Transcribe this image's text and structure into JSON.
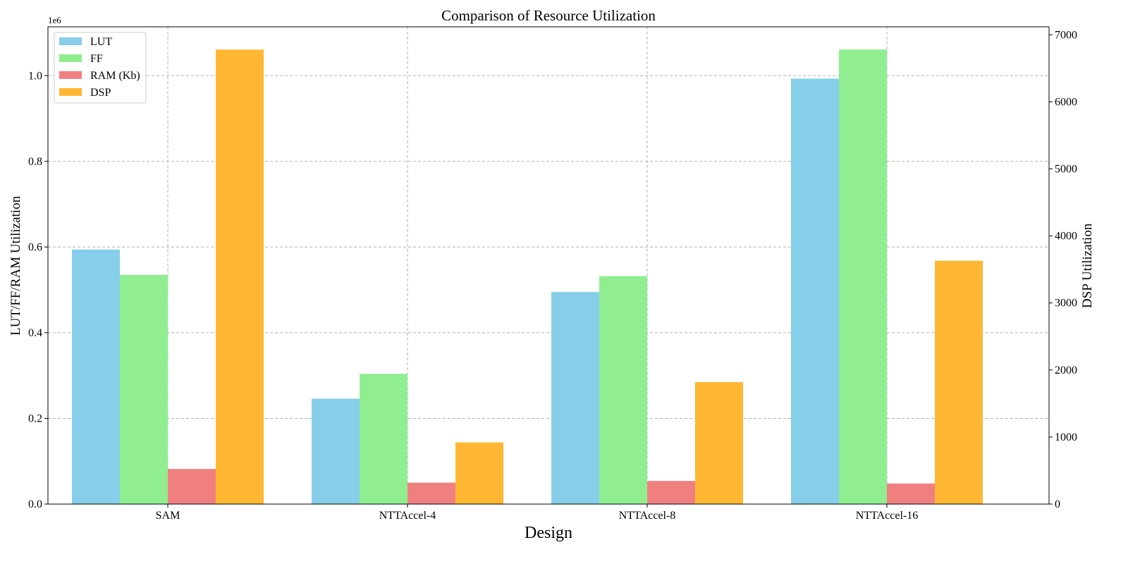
{
  "chart_data": {
    "type": "bar",
    "title": "Comparison of Resource Utilization",
    "xlabel": "Design",
    "ylabel_left": "LUT/FF/RAM Utilization",
    "ylabel_right": "DSP Utilization",
    "left_axis_offset_label": "1e6",
    "categories": [
      "SAM",
      "NTTAccel-4",
      "NTTAccel-8",
      "NTTAccel-16"
    ],
    "series": [
      {
        "name": "LUT",
        "axis": "left",
        "color": "#87CEEB",
        "values": [
          594000,
          246000,
          495000,
          993000
        ]
      },
      {
        "name": "FF",
        "axis": "left",
        "color": "#90EE90",
        "values": [
          535000,
          304000,
          532000,
          1061000
        ]
      },
      {
        "name": "RAM (Kb)",
        "axis": "left",
        "color": "#F08080",
        "values": [
          82000,
          50000,
          54000,
          48000
        ]
      },
      {
        "name": "DSP",
        "axis": "right",
        "color": "#FFB733",
        "values": [
          6780,
          920,
          1820,
          3630
        ]
      }
    ],
    "ylim_left": [
      0,
      1114000
    ],
    "ylim_right": [
      0,
      7120
    ],
    "yticks_left": [
      0,
      200000,
      400000,
      600000,
      800000,
      1000000
    ],
    "yticklabels_left": [
      "0.0",
      "0.2",
      "0.4",
      "0.6",
      "0.8",
      "1.0"
    ],
    "yticks_right": [
      0,
      1000,
      2000,
      3000,
      4000,
      5000,
      6000,
      7000
    ],
    "yticklabels_right": [
      "0",
      "1000",
      "2000",
      "3000",
      "4000",
      "5000",
      "6000",
      "7000"
    ],
    "grid": true,
    "legend_position": "top-left"
  }
}
